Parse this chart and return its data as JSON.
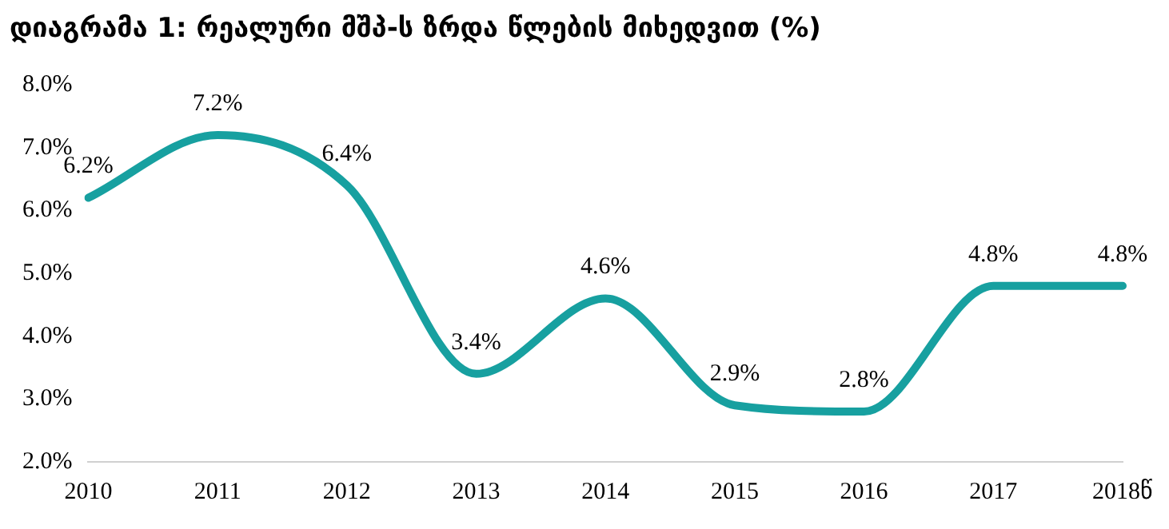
{
  "chart_data": {
    "type": "line",
    "title": "დიაგრამა 1: რეალური მშპ-ს ზრდა წლების მიხედვით (%)",
    "categories": [
      "2010",
      "2011",
      "2012",
      "2013",
      "2014",
      "2015",
      "2016",
      "2017",
      "2018წ"
    ],
    "series": [
      {
        "color": "#17a0a0",
        "values": [
          6.2,
          7.2,
          6.4,
          3.4,
          4.6,
          2.9,
          2.8,
          4.8,
          4.8
        ],
        "value_labels": [
          "6.2%",
          "7.2%",
          "6.4%",
          "3.4%",
          "4.6%",
          "2.9%",
          "2.8%",
          "4.8%",
          "4.8%"
        ]
      }
    ],
    "ylim": [
      2,
      8
    ],
    "yticks": [
      {
        "value": 2,
        "label": "2.0%"
      },
      {
        "value": 3,
        "label": "3.0%"
      },
      {
        "value": 4,
        "label": "4.0%"
      },
      {
        "value": 5,
        "label": "5.0%"
      },
      {
        "value": 6,
        "label": "6.0%"
      },
      {
        "value": 7,
        "label": "7.0%"
      },
      {
        "value": 8,
        "label": "8.0%"
      }
    ],
    "grid": false,
    "legend": false,
    "marker": "none",
    "line_style": "solid"
  }
}
